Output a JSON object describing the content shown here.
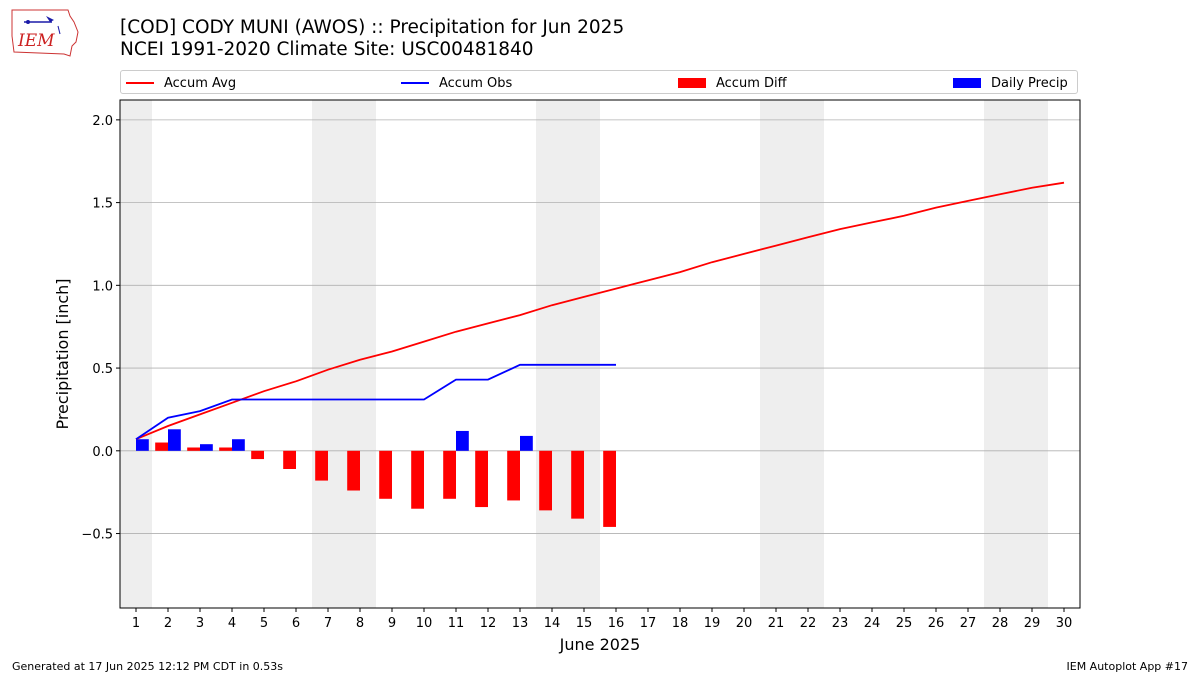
{
  "header": {
    "title_line1": "[COD] CODY MUNI (AWOS) :: Precipitation for Jun 2025",
    "title_line2": "NCEI 1991-2020 Climate Site: USC00481840",
    "logo_text": "IEM"
  },
  "footer": {
    "generated": "Generated at 17 Jun 2025 12:12 PM CDT in 0.53s",
    "app": "IEM Autoplot App #17"
  },
  "legend": {
    "items": [
      {
        "label": "Accum Avg",
        "kind": "line",
        "color": "#ff0000"
      },
      {
        "label": "Accum Obs",
        "kind": "line",
        "color": "#0000ff"
      },
      {
        "label": "Accum Diff",
        "kind": "bar",
        "color": "#ff0000"
      },
      {
        "label": "Daily Precip",
        "kind": "bar",
        "color": "#0000ff"
      }
    ]
  },
  "chart_data": {
    "type": "bar",
    "xlabel": "June 2025",
    "ylabel": "Precipitation [inch]",
    "xlim": [
      0.5,
      30.5
    ],
    "ylim": [
      -0.95,
      2.12
    ],
    "yticks": [
      -0.5,
      0.0,
      0.5,
      1.0,
      1.5,
      2.0
    ],
    "ytick_labels": [
      "−0.5",
      "0.0",
      "0.5",
      "1.0",
      "1.5",
      "2.0"
    ],
    "days": [
      1,
      2,
      3,
      4,
      5,
      6,
      7,
      8,
      9,
      10,
      11,
      12,
      13,
      14,
      15,
      16,
      17,
      18,
      19,
      20,
      21,
      22,
      23,
      24,
      25,
      26,
      27,
      28,
      29,
      30
    ],
    "weekend_days": [
      1,
      7,
      8,
      14,
      15,
      21,
      22,
      28,
      29
    ],
    "grid": "horizontal",
    "colors": {
      "avg": "#ff0000",
      "obs": "#0000ff",
      "diff": "#ff0000",
      "daily": "#0000ff",
      "weekend": "#eeeeee",
      "grid": "#b0b0b0"
    },
    "series": [
      {
        "name": "Accum Avg",
        "kind": "line",
        "x": [
          1,
          2,
          3,
          4,
          5,
          6,
          7,
          8,
          9,
          10,
          11,
          12,
          13,
          14,
          15,
          16,
          17,
          18,
          19,
          20,
          21,
          22,
          23,
          24,
          25,
          26,
          27,
          28,
          29,
          30
        ],
        "values": [
          0.07,
          0.15,
          0.22,
          0.29,
          0.36,
          0.42,
          0.49,
          0.55,
          0.6,
          0.66,
          0.72,
          0.77,
          0.82,
          0.88,
          0.93,
          0.98,
          1.03,
          1.08,
          1.14,
          1.19,
          1.24,
          1.29,
          1.34,
          1.38,
          1.42,
          1.47,
          1.51,
          1.55,
          1.59,
          1.62
        ]
      },
      {
        "name": "Accum Obs",
        "kind": "line",
        "x": [
          1,
          2,
          3,
          4,
          5,
          6,
          7,
          8,
          9,
          10,
          11,
          12,
          13,
          14,
          15,
          16
        ],
        "values": [
          0.07,
          0.2,
          0.24,
          0.31,
          0.31,
          0.31,
          0.31,
          0.31,
          0.31,
          0.31,
          0.43,
          0.43,
          0.52,
          0.52,
          0.52,
          0.52
        ]
      },
      {
        "name": "Accum Diff",
        "kind": "bar",
        "x": [
          1,
          2,
          3,
          4,
          5,
          6,
          7,
          8,
          9,
          10,
          11,
          12,
          13,
          14,
          15,
          16
        ],
        "values": [
          0.0,
          0.05,
          0.02,
          0.02,
          -0.05,
          -0.11,
          -0.18,
          -0.24,
          -0.29,
          -0.35,
          -0.29,
          -0.34,
          -0.3,
          -0.36,
          -0.41,
          -0.46
        ]
      },
      {
        "name": "Daily Precip",
        "kind": "bar",
        "x": [
          1,
          2,
          3,
          4,
          5,
          6,
          7,
          8,
          9,
          10,
          11,
          12,
          13,
          14,
          15,
          16
        ],
        "values": [
          0.07,
          0.13,
          0.04,
          0.07,
          0.0,
          0.0,
          0.0,
          0.0,
          0.0,
          0.0,
          0.12,
          0.0,
          0.09,
          0.0,
          0.0,
          0.0
        ]
      }
    ]
  }
}
